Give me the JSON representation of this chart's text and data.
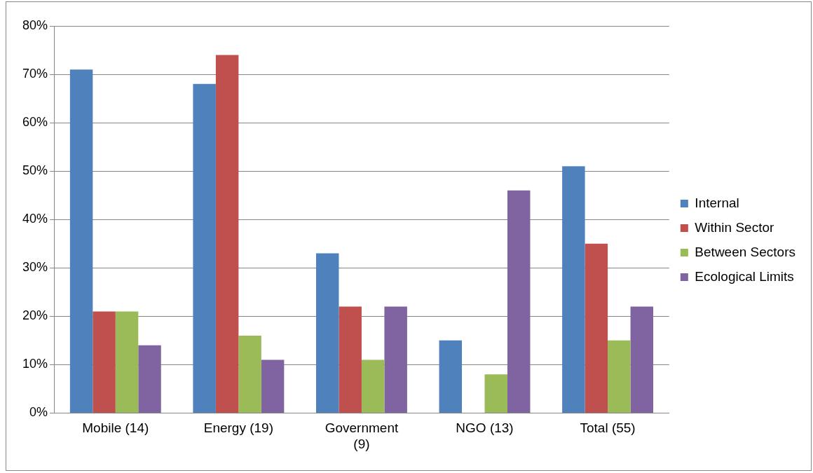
{
  "chart_data": {
    "type": "bar",
    "categories": [
      "Mobile (14)",
      "Energy (19)",
      "Government (9)",
      "NGO (13)",
      "Total (55)"
    ],
    "series": [
      {
        "name": "Internal",
        "color": "#4f81bd",
        "values": [
          71,
          68,
          33,
          15,
          51
        ]
      },
      {
        "name": "Within Sector",
        "color": "#c0504d",
        "values": [
          21,
          74,
          22,
          0,
          35
        ]
      },
      {
        "name": "Between Sectors",
        "color": "#9bbb59",
        "values": [
          21,
          16,
          11,
          8,
          15
        ]
      },
      {
        "name": "Ecological Limits",
        "color": "#8064a2",
        "values": [
          14,
          11,
          22,
          46,
          22
        ]
      }
    ],
    "ylim": [
      0,
      80
    ],
    "yticks": [
      {
        "value": 0,
        "label": "0%"
      },
      {
        "value": 10,
        "label": "10%"
      },
      {
        "value": 20,
        "label": "20%"
      },
      {
        "value": 30,
        "label": "30%"
      },
      {
        "value": 40,
        "label": "40%"
      },
      {
        "value": 50,
        "label": "50%"
      },
      {
        "value": 60,
        "label": "60%"
      },
      {
        "value": 70,
        "label": "70%"
      },
      {
        "value": 80,
        "label": "80%"
      }
    ],
    "grid": "y",
    "legend": "right"
  }
}
